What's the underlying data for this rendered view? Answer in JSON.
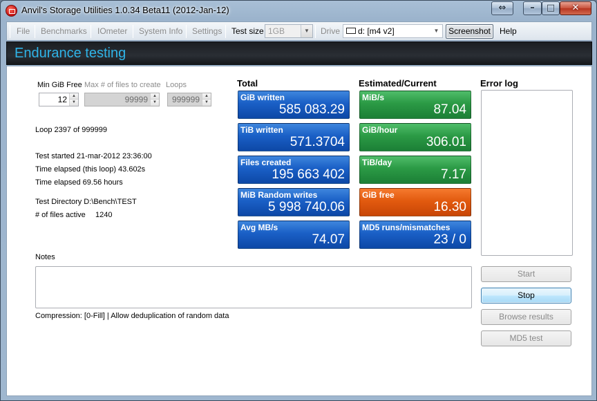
{
  "window": {
    "title": "Anvil's Storage Utilities 1.0.34 Beta11 (2012-Jan-12)",
    "buttons": {
      "swap": "⇔",
      "minimize": "–",
      "maximize": "□",
      "close": "✕"
    }
  },
  "toolbar": {
    "file": "File",
    "benchmarks": "Benchmarks",
    "iometer": "IOmeter",
    "system_info": "System Info",
    "settings": "Settings",
    "test_size_label": "Test size",
    "test_size_value": "1GB",
    "drive_label": "Drive",
    "drive_value": "d: [m4 v2]",
    "screenshot": "Screenshot",
    "help": "Help"
  },
  "header": {
    "title": "Endurance testing"
  },
  "params": {
    "min_free_label": "Min GiB Free",
    "min_free_value": "12",
    "max_files_label": "Max # of files to create",
    "max_files_value": "99999",
    "loops_label": "Loops",
    "loops_value": "999999"
  },
  "status": {
    "loop": "Loop 2397 of 999999",
    "test_started": "Test started 21-mar-2012 23:36:00",
    "elapsed_loop": "Time elapsed (this loop) 43.602s",
    "elapsed_total": "Time elapsed 69.56 hours",
    "test_directory": "Test Directory D:\\Bench\\TEST",
    "files_active_label": "# of files active",
    "files_active_value": "1240"
  },
  "total": {
    "heading": "Total",
    "tiles": [
      {
        "label": "GiB written",
        "value": "585 083.29",
        "color": "#1a5fc6"
      },
      {
        "label": "TiB written",
        "value": "571.3704",
        "color": "#1a5fc6"
      },
      {
        "label": "Files created",
        "value": "195 663 402",
        "color": "#1a5fc6"
      },
      {
        "label": "MiB Random writes",
        "value": "5 998 740.06",
        "color": "#1a5fc6"
      },
      {
        "label": "Avg MB/s",
        "value": "74.07",
        "color": "#1a5fc6"
      }
    ]
  },
  "estimated": {
    "heading": "Estimated/Current",
    "tiles": [
      {
        "label": "MiB/s",
        "value": "87.04",
        "color": "#2b9a45"
      },
      {
        "label": "GiB/hour",
        "value": "306.01",
        "color": "#2b9a45"
      },
      {
        "label": "TiB/day",
        "value": "7.17",
        "color": "#2b9a45"
      },
      {
        "label": "GiB free",
        "value": "16.30",
        "color": "#e25a0f"
      },
      {
        "label": "MD5 runs/mismatches",
        "value": "23 / 0",
        "color": "#1a5fc6"
      }
    ]
  },
  "error_log": {
    "heading": "Error log"
  },
  "notes": {
    "label": "Notes",
    "compression": "Compression: [0-Fill] | Allow deduplication of random data"
  },
  "actions": {
    "start": "Start",
    "stop": "Stop",
    "browse": "Browse results",
    "md5": "MD5 test"
  },
  "colors": {
    "accent_title": "#2fb4e8",
    "header_bg": "#1f2327"
  }
}
